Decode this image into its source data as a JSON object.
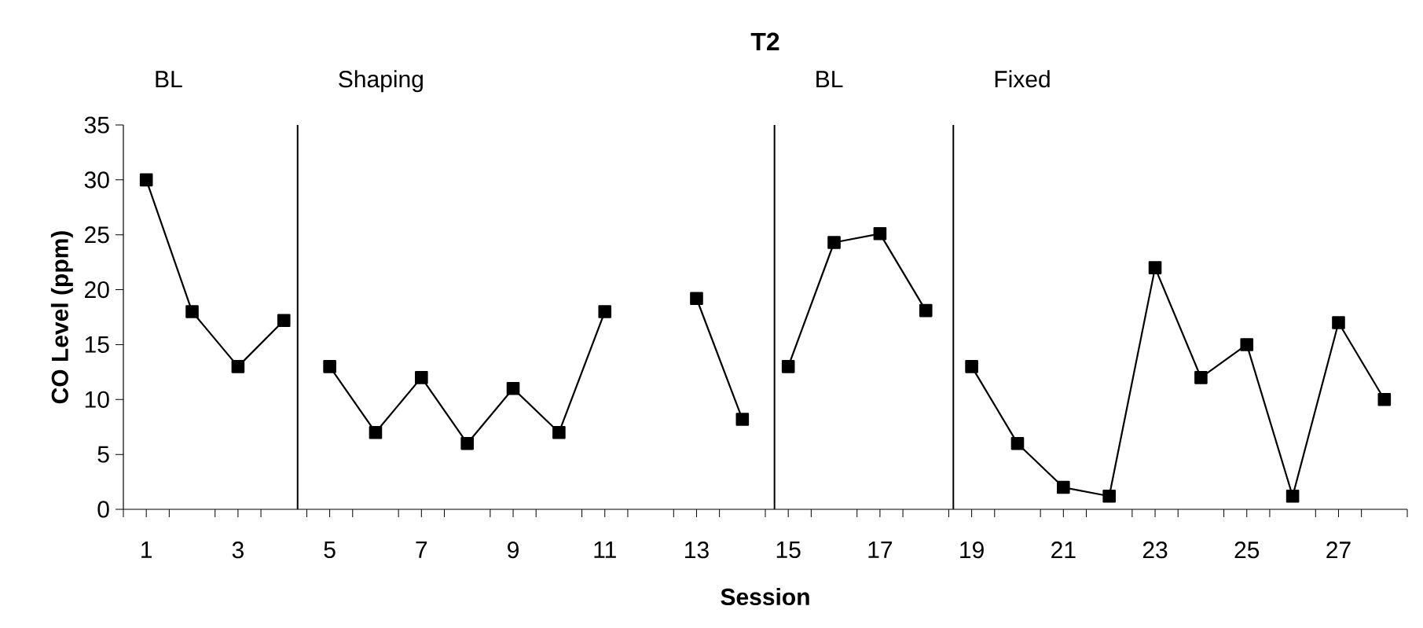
{
  "chart_data": {
    "type": "line",
    "title": "T2",
    "xlabel": "Session",
    "ylabel": "CO Level (ppm)",
    "series": [
      {
        "color": "#000000",
        "x": [
          1,
          2,
          3,
          4
        ],
        "values": [
          30,
          18,
          13,
          17.2
        ]
      },
      {
        "color": "#000000",
        "x": [
          5,
          6,
          7,
          8,
          9,
          10,
          11,
          12,
          13,
          14
        ],
        "values": [
          13,
          7,
          12,
          6,
          11,
          7,
          18,
          null,
          19.2,
          8.2
        ]
      },
      {
        "color": "#000000",
        "x": [
          15,
          16,
          17,
          18
        ],
        "values": [
          13,
          24.3,
          25.1,
          18.1
        ]
      },
      {
        "color": "#000000",
        "x": [
          19,
          20,
          21,
          22,
          23,
          24,
          25,
          26,
          27,
          28
        ],
        "values": [
          13,
          6,
          2,
          1.2,
          22,
          12,
          15,
          1.2,
          17,
          10
        ]
      }
    ],
    "xlim": [
      0.5,
      28.5
    ],
    "ylim": [
      0,
      35
    ],
    "xticks": [
      {
        "value": 0.5,
        "label": null
      },
      1,
      {
        "value": 1.5,
        "label": null
      },
      {
        "value": 2.5,
        "label": null
      },
      3,
      {
        "value": 3.5,
        "label": null
      },
      {
        "value": 4.5,
        "label": null
      },
      5,
      {
        "value": 5.5,
        "label": null
      },
      {
        "value": 6.5,
        "label": null
      },
      7,
      {
        "value": 7.5,
        "label": null
      },
      {
        "value": 8.5,
        "label": null
      },
      9,
      {
        "value": 9.5,
        "label": null
      },
      {
        "value": 10.5,
        "label": null
      },
      11,
      {
        "value": 11.5,
        "label": null
      },
      {
        "value": 12.5,
        "label": null
      },
      13,
      {
        "value": 13.5,
        "label": null
      },
      {
        "value": 14.5,
        "label": null
      },
      15,
      {
        "value": 15.5,
        "label": null
      },
      {
        "value": 16.5,
        "label": null
      },
      17,
      {
        "value": 17.5,
        "label": null
      },
      {
        "value": 18.5,
        "label": null
      },
      19,
      {
        "value": 19.5,
        "label": null
      },
      {
        "value": 20.5,
        "label": null
      },
      21,
      {
        "value": 21.5,
        "label": null
      },
      {
        "value": 22.5,
        "label": null
      },
      23,
      {
        "value": 23.5,
        "label": null
      },
      {
        "value": 24.5,
        "label": null
      },
      25,
      {
        "value": 25.5,
        "label": null
      },
      {
        "value": 26.5,
        "label": null
      },
      27,
      {
        "value": 27.5,
        "label": null
      },
      {
        "value": 28.5,
        "label": null
      }
    ],
    "yticks": [
      0,
      5,
      10,
      15,
      20,
      25,
      30,
      35
    ],
    "ref_lines": [
      {
        "axis": "x",
        "value": 4.3,
        "label": "Shaping",
        "color": "#000000"
      },
      {
        "axis": "x",
        "value": 14.7,
        "label": "BL",
        "color": "#000000"
      },
      {
        "axis": "x",
        "value": 18.6,
        "label": "Fixed",
        "color": "#000000"
      }
    ],
    "annotations": [
      "BL"
    ],
    "marker": "square",
    "line_style": "solid",
    "grid": false
  }
}
